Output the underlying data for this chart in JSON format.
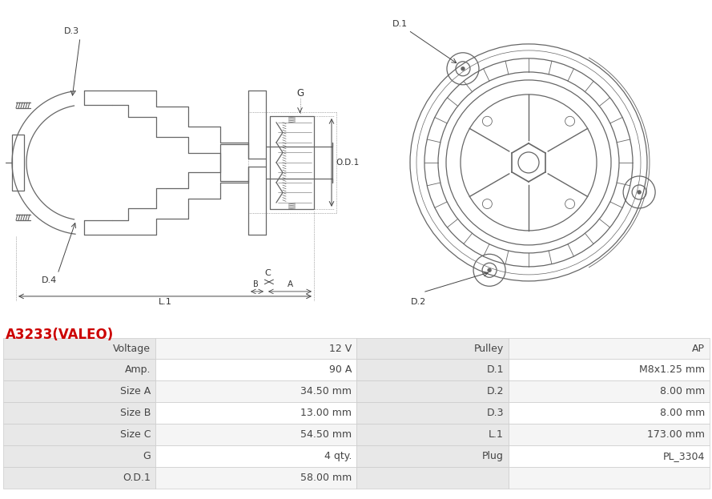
{
  "title": "A3233(VALEO)",
  "title_color": "#cc0000",
  "table_left": [
    [
      "Voltage",
      "12 V"
    ],
    [
      "Amp.",
      "90 A"
    ],
    [
      "Size A",
      "34.50 mm"
    ],
    [
      "Size B",
      "13.00 mm"
    ],
    [
      "Size C",
      "54.50 mm"
    ],
    [
      "G",
      "4 qty."
    ],
    [
      "O.D.1",
      "58.00 mm"
    ]
  ],
  "table_right": [
    [
      "Pulley",
      "AP"
    ],
    [
      "D.1",
      "M8x1.25 mm"
    ],
    [
      "D.2",
      "8.00 mm"
    ],
    [
      "D.3",
      "8.00 mm"
    ],
    [
      "L.1",
      "173.00 mm"
    ],
    [
      "Plug",
      "PL_3304"
    ],
    [
      "",
      ""
    ]
  ],
  "bg_color": "#ffffff",
  "row_bg_label": "#e8e8e8",
  "row_bg_odd": "#f5f5f5",
  "row_bg_even": "#ffffff",
  "border_color": "#cccccc",
  "text_color": "#444444",
  "lc": "#666666"
}
